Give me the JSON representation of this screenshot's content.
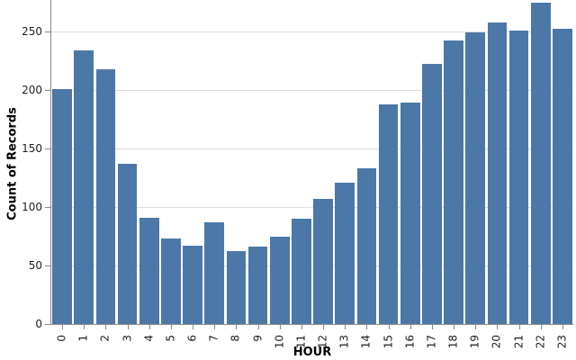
{
  "chart_data": {
    "type": "bar",
    "title": "",
    "xlabel": "HOUR",
    "ylabel": "Count of Records",
    "categories": [
      "0",
      "1",
      "2",
      "3",
      "4",
      "5",
      "6",
      "7",
      "8",
      "9",
      "10",
      "11",
      "12",
      "13",
      "14",
      "15",
      "16",
      "17",
      "18",
      "19",
      "20",
      "21",
      "22",
      "23"
    ],
    "values": [
      201,
      234,
      218,
      137,
      91,
      73,
      67,
      87,
      62,
      66,
      75,
      90,
      107,
      121,
      133,
      188,
      189,
      222,
      242,
      249,
      258,
      251,
      275,
      252
    ],
    "yticks": [
      0,
      50,
      100,
      150,
      200,
      250
    ],
    "ylim": [
      0,
      277
    ],
    "grid": true,
    "legend": "none",
    "bar_color": "#4c78a8",
    "grid_color": "#dddddd",
    "axis_color": "#888888",
    "label_color": "#1f1f1f"
  }
}
